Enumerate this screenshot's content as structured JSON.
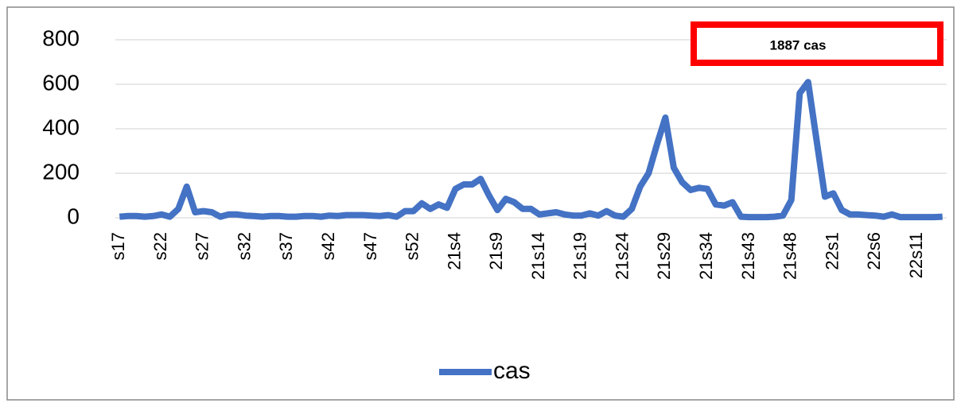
{
  "chart_data": {
    "type": "line",
    "annotation": "1887 cas",
    "categories": [
      "s17",
      null,
      null,
      null,
      null,
      "s22",
      null,
      null,
      null,
      null,
      "s27",
      null,
      null,
      null,
      null,
      "s32",
      null,
      null,
      null,
      null,
      "s37",
      null,
      null,
      null,
      null,
      "s42",
      null,
      null,
      null,
      null,
      "s47",
      null,
      null,
      null,
      null,
      "s52",
      null,
      null,
      null,
      null,
      "21s4",
      null,
      null,
      null,
      null,
      "21s9",
      null,
      null,
      null,
      null,
      "21s14",
      null,
      null,
      null,
      null,
      "21s19",
      null,
      null,
      null,
      null,
      "21s24",
      null,
      null,
      null,
      null,
      "21s29",
      null,
      null,
      null,
      null,
      "21s34",
      null,
      null,
      null,
      null,
      "21s43",
      null,
      null,
      null,
      null,
      "21s48",
      null,
      null,
      null,
      null,
      "22s1",
      null,
      null,
      null,
      null,
      "22s6",
      null,
      null,
      null,
      null,
      "22s11",
      null,
      null,
      null
    ],
    "series": [
      {
        "name": "cas",
        "color": "#4472c4",
        "values": [
          5,
          8,
          8,
          5,
          8,
          15,
          5,
          40,
          140,
          25,
          30,
          25,
          5,
          15,
          15,
          10,
          8,
          5,
          8,
          8,
          5,
          5,
          8,
          8,
          5,
          10,
          8,
          12,
          12,
          12,
          10,
          8,
          12,
          5,
          30,
          30,
          65,
          40,
          60,
          45,
          130,
          150,
          150,
          175,
          100,
          35,
          85,
          70,
          40,
          40,
          15,
          20,
          25,
          15,
          10,
          10,
          20,
          10,
          30,
          10,
          5,
          40,
          140,
          200,
          330,
          450,
          225,
          160,
          125,
          135,
          130,
          60,
          55,
          70,
          5,
          3,
          3,
          3,
          5,
          10,
          80,
          560,
          610,
          350,
          95,
          110,
          35,
          15,
          15,
          12,
          10,
          5,
          15,
          3,
          3,
          3,
          3,
          3,
          5
        ]
      }
    ],
    "ylim": [
      0,
      800
    ],
    "yticks": [
      0,
      200,
      400,
      600,
      800
    ],
    "grid": true,
    "legend": "bottom"
  }
}
